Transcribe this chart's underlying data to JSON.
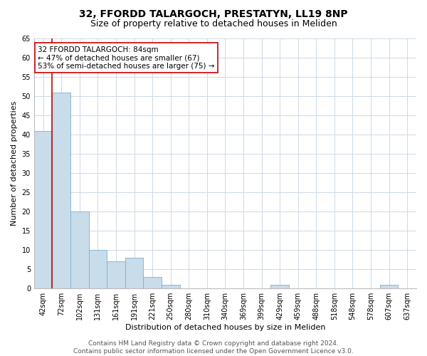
{
  "title1": "32, FFORDD TALARGOCH, PRESTATYN, LL19 8NP",
  "title2": "Size of property relative to detached houses in Meliden",
  "xlabel": "Distribution of detached houses by size in Meliden",
  "ylabel": "Number of detached properties",
  "categories": [
    "42sqm",
    "72sqm",
    "102sqm",
    "131sqm",
    "161sqm",
    "191sqm",
    "221sqm",
    "250sqm",
    "280sqm",
    "310sqm",
    "340sqm",
    "369sqm",
    "399sqm",
    "429sqm",
    "459sqm",
    "488sqm",
    "518sqm",
    "548sqm",
    "578sqm",
    "607sqm",
    "637sqm"
  ],
  "values": [
    41,
    51,
    20,
    10,
    7,
    8,
    3,
    1,
    0,
    0,
    0,
    0,
    0,
    1,
    0,
    0,
    0,
    0,
    0,
    1,
    0
  ],
  "bar_color": "#c9dcea",
  "bar_edge_color": "#7bafd4",
  "vline_x": 0.5,
  "vline_color": "#cc0000",
  "ylim": [
    0,
    65
  ],
  "yticks": [
    0,
    5,
    10,
    15,
    20,
    25,
    30,
    35,
    40,
    45,
    50,
    55,
    60,
    65
  ],
  "annotation_box_text": "32 FFORDD TALARGOCH: 84sqm\n← 47% of detached houses are smaller (67)\n53% of semi-detached houses are larger (75) →",
  "footer": "Contains HM Land Registry data © Crown copyright and database right 2024.\nContains public sector information licensed under the Open Government Licence v3.0.",
  "background_color": "#ffffff",
  "grid_color": "#cdd9e5",
  "title_fontsize": 10,
  "subtitle_fontsize": 9,
  "axis_label_fontsize": 8,
  "tick_fontsize": 7,
  "annotation_fontsize": 7.5,
  "footer_fontsize": 6.5
}
